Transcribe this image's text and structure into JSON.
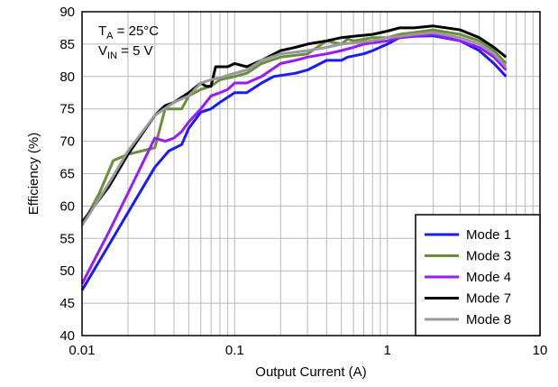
{
  "chart_data": {
    "type": "line",
    "xlabel": "Output Current (A)",
    "ylabel": "Efficiency (%)",
    "x_scale": "log",
    "xlim": [
      0.01,
      10
    ],
    "ylim": [
      40,
      90
    ],
    "x_ticks": [
      0.01,
      0.1,
      1,
      10
    ],
    "x_tick_labels": [
      "0.01",
      "0.1",
      "1",
      "10"
    ],
    "y_ticks": [
      40,
      45,
      50,
      55,
      60,
      65,
      70,
      75,
      80,
      85,
      90
    ],
    "y_tick_labels": [
      "40",
      "45",
      "50",
      "55",
      "60",
      "65",
      "70",
      "75",
      "80",
      "85",
      "90"
    ],
    "grid": true,
    "legend_position": "bottom-right",
    "annotations": [
      {
        "main": "T",
        "sub": "A",
        "rest": " = 25°C"
      },
      {
        "main": "V",
        "sub": "IN",
        "rest": " = 5 V"
      }
    ],
    "series": [
      {
        "name": "Mode 1",
        "color": "#1a1aff",
        "points": [
          [
            0.01,
            47
          ],
          [
            0.015,
            54
          ],
          [
            0.02,
            59
          ],
          [
            0.03,
            66
          ],
          [
            0.037,
            68.5
          ],
          [
            0.045,
            69.5
          ],
          [
            0.05,
            72
          ],
          [
            0.06,
            74.5
          ],
          [
            0.07,
            75
          ],
          [
            0.08,
            76
          ],
          [
            0.1,
            77.5
          ],
          [
            0.12,
            77.5
          ],
          [
            0.15,
            79
          ],
          [
            0.18,
            80
          ],
          [
            0.25,
            80.5
          ],
          [
            0.3,
            81
          ],
          [
            0.4,
            82.5
          ],
          [
            0.45,
            82.5
          ],
          [
            0.5,
            82.5
          ],
          [
            0.55,
            83
          ],
          [
            0.7,
            83.5
          ],
          [
            0.8,
            84
          ],
          [
            1,
            85
          ],
          [
            1.2,
            86
          ],
          [
            1.5,
            86.2
          ],
          [
            2,
            86.3
          ],
          [
            3,
            85.5
          ],
          [
            4,
            84
          ],
          [
            5,
            82
          ],
          [
            6,
            80
          ]
        ]
      },
      {
        "name": "Mode 3",
        "color": "#6b8e3a",
        "points": [
          [
            0.01,
            57
          ],
          [
            0.013,
            62
          ],
          [
            0.016,
            67
          ],
          [
            0.02,
            68
          ],
          [
            0.03,
            69
          ],
          [
            0.035,
            75
          ],
          [
            0.04,
            75
          ],
          [
            0.045,
            75
          ],
          [
            0.05,
            77
          ],
          [
            0.06,
            78
          ],
          [
            0.07,
            78.5
          ],
          [
            0.08,
            79.5
          ],
          [
            0.1,
            80
          ],
          [
            0.12,
            80.5
          ],
          [
            0.15,
            82
          ],
          [
            0.2,
            83
          ],
          [
            0.3,
            83.5
          ],
          [
            0.4,
            85.5
          ],
          [
            0.5,
            85
          ],
          [
            0.55,
            85.8
          ],
          [
            0.6,
            85.5
          ],
          [
            0.8,
            86
          ],
          [
            1,
            86
          ],
          [
            1.2,
            86.5
          ],
          [
            1.5,
            86.8
          ],
          [
            2,
            87.2
          ],
          [
            3,
            86.5
          ],
          [
            4,
            85.5
          ],
          [
            5,
            84
          ],
          [
            6,
            82
          ]
        ]
      },
      {
        "name": "Mode 4",
        "color": "#9a1aff",
        "points": [
          [
            0.01,
            48
          ],
          [
            0.015,
            56
          ],
          [
            0.02,
            62
          ],
          [
            0.03,
            70.5
          ],
          [
            0.035,
            70
          ],
          [
            0.04,
            70.5
          ],
          [
            0.045,
            71.5
          ],
          [
            0.05,
            73
          ],
          [
            0.06,
            75
          ],
          [
            0.07,
            77
          ],
          [
            0.08,
            77.5
          ],
          [
            0.09,
            78
          ],
          [
            0.1,
            79
          ],
          [
            0.12,
            79
          ],
          [
            0.15,
            80
          ],
          [
            0.2,
            82
          ],
          [
            0.25,
            82.5
          ],
          [
            0.3,
            83
          ],
          [
            0.4,
            83.5
          ],
          [
            0.5,
            84
          ],
          [
            0.6,
            84.5
          ],
          [
            0.7,
            85
          ],
          [
            1,
            85.5
          ],
          [
            1.2,
            86
          ],
          [
            1.5,
            86.2
          ],
          [
            2,
            86.5
          ],
          [
            3,
            85.5
          ],
          [
            4,
            84.5
          ],
          [
            5,
            83
          ],
          [
            6,
            81
          ]
        ]
      },
      {
        "name": "Mode 7",
        "color": "#000000",
        "points": [
          [
            0.01,
            57.5
          ],
          [
            0.015,
            63
          ],
          [
            0.02,
            68
          ],
          [
            0.03,
            74
          ],
          [
            0.035,
            75.5
          ],
          [
            0.04,
            76
          ],
          [
            0.05,
            77.5
          ],
          [
            0.06,
            79
          ],
          [
            0.065,
            78.5
          ],
          [
            0.07,
            78.5
          ],
          [
            0.075,
            81.5
          ],
          [
            0.08,
            81.5
          ],
          [
            0.09,
            81.5
          ],
          [
            0.1,
            82
          ],
          [
            0.12,
            81.5
          ],
          [
            0.15,
            82.5
          ],
          [
            0.2,
            84
          ],
          [
            0.25,
            84.5
          ],
          [
            0.3,
            85
          ],
          [
            0.4,
            85.5
          ],
          [
            0.5,
            86
          ],
          [
            0.6,
            86.2
          ],
          [
            0.8,
            86.5
          ],
          [
            1,
            87
          ],
          [
            1.2,
            87.5
          ],
          [
            1.5,
            87.5
          ],
          [
            2,
            87.8
          ],
          [
            3,
            87.2
          ],
          [
            4,
            86
          ],
          [
            5,
            84.5
          ],
          [
            6,
            83
          ]
        ]
      },
      {
        "name": "Mode 8",
        "color": "#999999",
        "points": [
          [
            0.01,
            57
          ],
          [
            0.015,
            63.5
          ],
          [
            0.02,
            68.5
          ],
          [
            0.03,
            74
          ],
          [
            0.04,
            76
          ],
          [
            0.05,
            77
          ],
          [
            0.06,
            79
          ],
          [
            0.07,
            79.5
          ],
          [
            0.08,
            79.8
          ],
          [
            0.1,
            80.5
          ],
          [
            0.12,
            81
          ],
          [
            0.15,
            82.5
          ],
          [
            0.2,
            83.5
          ],
          [
            0.3,
            84
          ],
          [
            0.4,
            84.5
          ],
          [
            0.5,
            85
          ],
          [
            0.6,
            85.2
          ],
          [
            0.8,
            85.5
          ],
          [
            1,
            86
          ],
          [
            1.2,
            86.2
          ],
          [
            1.5,
            86.5
          ],
          [
            2,
            86.8
          ],
          [
            3,
            86
          ],
          [
            4,
            85
          ],
          [
            5,
            83.5
          ],
          [
            6,
            81.5
          ]
        ]
      }
    ]
  }
}
